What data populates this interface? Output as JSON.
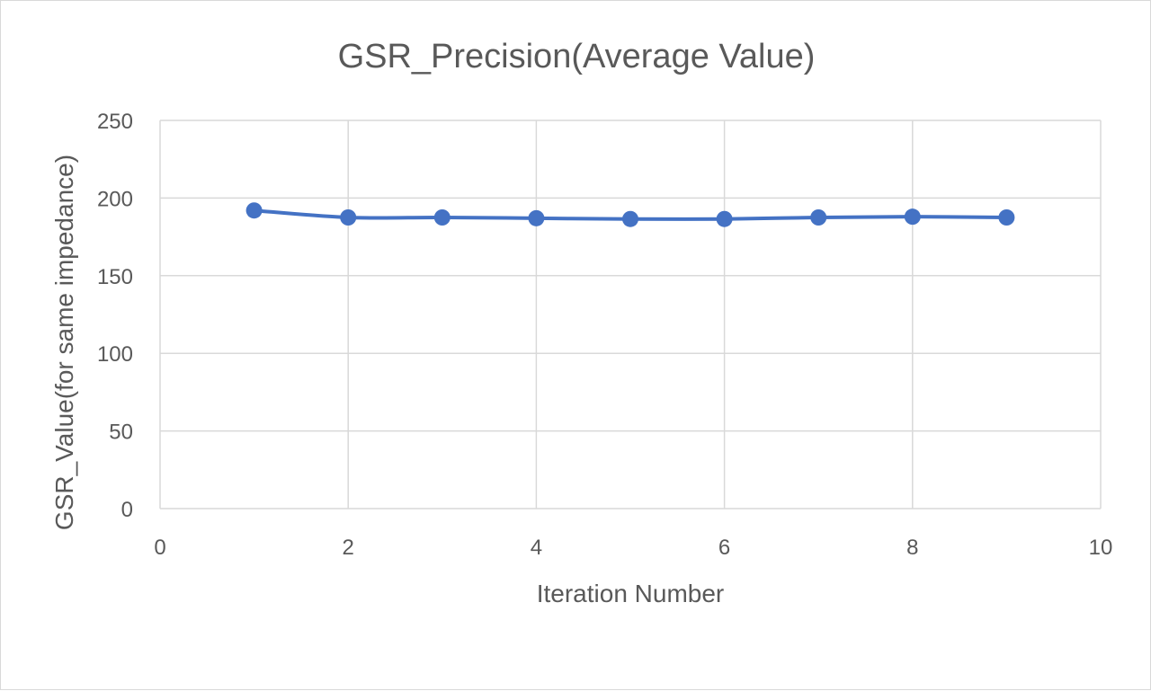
{
  "chart_data": {
    "type": "scatter",
    "title": "GSR_Precision(Average Value)",
    "xlabel": "Iteration Number",
    "ylabel": "GSR_Value(for same impedance)",
    "xlim": [
      0,
      10
    ],
    "ylim": [
      0,
      250
    ],
    "x_ticks": [
      0,
      2,
      4,
      6,
      8,
      10
    ],
    "y_ticks": [
      0,
      50,
      100,
      150,
      200,
      250
    ],
    "grid": true,
    "legend": "none",
    "line_style": "smooth line with markers",
    "series": [
      {
        "color": "#4472c4",
        "x": [
          1,
          2,
          3,
          4,
          5,
          6,
          7,
          8,
          9
        ],
        "values": [
          192,
          187.5,
          187.5,
          187,
          186.5,
          186.5,
          187.5,
          188,
          187.5
        ]
      }
    ]
  }
}
